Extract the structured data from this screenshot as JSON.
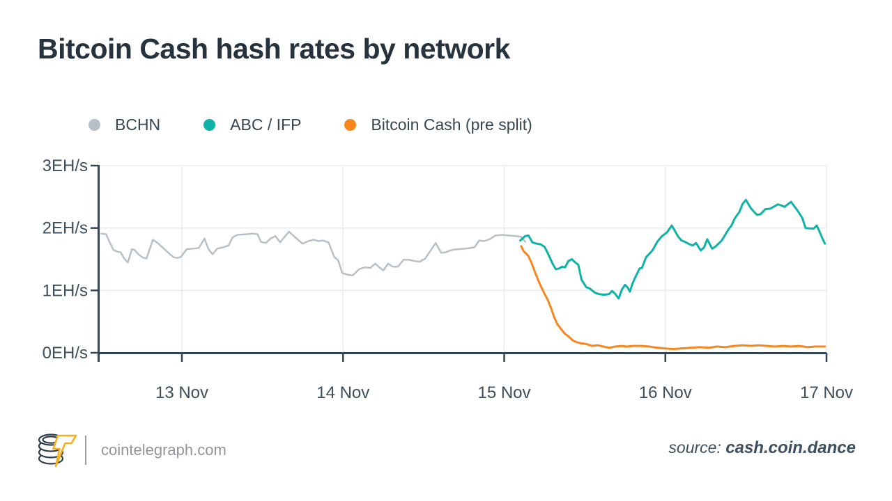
{
  "title": "Bitcoin Cash hash rates by network",
  "legend": [
    {
      "label": "BCHN",
      "color": "#b8c0c7"
    },
    {
      "label": "ABC / IFP",
      "color": "#0fb3a6"
    },
    {
      "label": "Bitcoin Cash (pre split)",
      "color": "#f6871f"
    }
  ],
  "footer": {
    "brand": "cointelegraph.com",
    "source_label": "source:",
    "source_value": "cash.coin.dance",
    "logo_coin_color": "#2e3d48",
    "logo_bolt_color": "#f2b01e"
  },
  "chart_data": {
    "type": "line",
    "title": "Bitcoin Cash hash rates by network",
    "xlabel": "",
    "ylabel": "EH/s",
    "x_unit": "days since 13 Nov",
    "xlim_days": [
      -0.523,
      4.0
    ],
    "ylim": [
      0,
      3
    ],
    "grid": true,
    "legend_position": "top",
    "axis_color": "#344451",
    "grid_color": "#ebebeb",
    "label_color": "#3d4e5a",
    "y_ticks": [
      {
        "v": 0,
        "label": "0EH/s"
      },
      {
        "v": 1,
        "label": "1EH/s"
      },
      {
        "v": 2,
        "label": "2EH/s"
      },
      {
        "v": 3,
        "label": "3EH/s"
      }
    ],
    "x_ticks": [
      {
        "d": 0,
        "label": "13 Nov"
      },
      {
        "d": 1,
        "label": "14 Nov"
      },
      {
        "d": 2,
        "label": "15 Nov"
      },
      {
        "d": 3,
        "label": "16 Nov"
      },
      {
        "d": 4,
        "label": "17 Nov"
      }
    ],
    "series": [
      {
        "name": "BCHN",
        "color": "#b8c0c7",
        "width": 2.5,
        "points": [
          [
            -0.5,
            1.91
          ],
          [
            -0.47,
            1.9
          ],
          [
            -0.455,
            1.81
          ],
          [
            -0.425,
            1.65
          ],
          [
            -0.4,
            1.62
          ],
          [
            -0.38,
            1.61
          ],
          [
            -0.355,
            1.5
          ],
          [
            -0.335,
            1.45
          ],
          [
            -0.31,
            1.66
          ],
          [
            -0.295,
            1.65
          ],
          [
            -0.27,
            1.58
          ],
          [
            -0.245,
            1.53
          ],
          [
            -0.22,
            1.51
          ],
          [
            -0.18,
            1.81
          ],
          [
            -0.155,
            1.77
          ],
          [
            -0.125,
            1.7
          ],
          [
            -0.1,
            1.64
          ],
          [
            -0.07,
            1.57
          ],
          [
            -0.05,
            1.53
          ],
          [
            -0.025,
            1.52
          ],
          [
            -0.005,
            1.54
          ],
          [
            0.03,
            1.66
          ],
          [
            0.075,
            1.67
          ],
          [
            0.105,
            1.68
          ],
          [
            0.14,
            1.83
          ],
          [
            0.165,
            1.66
          ],
          [
            0.19,
            1.58
          ],
          [
            0.22,
            1.67
          ],
          [
            0.255,
            1.69
          ],
          [
            0.29,
            1.72
          ],
          [
            0.315,
            1.85
          ],
          [
            0.345,
            1.89
          ],
          [
            0.4,
            1.9
          ],
          [
            0.44,
            1.91
          ],
          [
            0.47,
            1.9
          ],
          [
            0.49,
            1.78
          ],
          [
            0.52,
            1.76
          ],
          [
            0.55,
            1.83
          ],
          [
            0.58,
            1.87
          ],
          [
            0.61,
            1.77
          ],
          [
            0.635,
            1.85
          ],
          [
            0.665,
            1.94
          ],
          [
            0.695,
            1.87
          ],
          [
            0.725,
            1.8
          ],
          [
            0.75,
            1.75
          ],
          [
            0.785,
            1.79
          ],
          [
            0.815,
            1.81
          ],
          [
            0.85,
            1.79
          ],
          [
            0.875,
            1.8
          ],
          [
            0.91,
            1.77
          ],
          [
            0.945,
            1.54
          ],
          [
            0.97,
            1.48
          ],
          [
            0.995,
            1.28
          ],
          [
            1.03,
            1.25
          ],
          [
            1.06,
            1.24
          ],
          [
            1.1,
            1.34
          ],
          [
            1.135,
            1.37
          ],
          [
            1.17,
            1.36
          ],
          [
            1.2,
            1.43
          ],
          [
            1.225,
            1.37
          ],
          [
            1.25,
            1.32
          ],
          [
            1.28,
            1.43
          ],
          [
            1.31,
            1.38
          ],
          [
            1.34,
            1.38
          ],
          [
            1.375,
            1.49
          ],
          [
            1.41,
            1.49
          ],
          [
            1.445,
            1.47
          ],
          [
            1.475,
            1.46
          ],
          [
            1.51,
            1.51
          ],
          [
            1.575,
            1.76
          ],
          [
            1.61,
            1.6
          ],
          [
            1.635,
            1.61
          ],
          [
            1.68,
            1.65
          ],
          [
            1.715,
            1.66
          ],
          [
            1.76,
            1.67
          ],
          [
            1.79,
            1.68
          ],
          [
            1.815,
            1.69
          ],
          [
            1.845,
            1.8
          ],
          [
            1.875,
            1.79
          ],
          [
            1.91,
            1.82
          ],
          [
            1.945,
            1.88
          ],
          [
            1.99,
            1.89
          ],
          [
            2.025,
            1.88
          ],
          [
            2.07,
            1.87
          ],
          [
            2.105,
            1.86
          ],
          [
            2.13,
            1.78
          ]
        ]
      },
      {
        "name": "ABC / IFP",
        "color": "#0fb3a6",
        "width": 3,
        "points": [
          [
            2.1,
            1.8
          ],
          [
            2.13,
            1.87
          ],
          [
            2.15,
            1.88
          ],
          [
            2.175,
            1.77
          ],
          [
            2.2,
            1.75
          ],
          [
            2.225,
            1.74
          ],
          [
            2.25,
            1.7
          ],
          [
            2.27,
            1.6
          ],
          [
            2.3,
            1.43
          ],
          [
            2.32,
            1.34
          ],
          [
            2.34,
            1.35
          ],
          [
            2.36,
            1.38
          ],
          [
            2.378,
            1.37
          ],
          [
            2.398,
            1.47
          ],
          [
            2.42,
            1.5
          ],
          [
            2.44,
            1.45
          ],
          [
            2.46,
            1.41
          ],
          [
            2.48,
            1.17
          ],
          [
            2.51,
            1.05
          ],
          [
            2.53,
            1.03
          ],
          [
            2.565,
            0.96
          ],
          [
            2.59,
            0.94
          ],
          [
            2.62,
            0.93
          ],
          [
            2.65,
            0.94
          ],
          [
            2.67,
            0.99
          ],
          [
            2.69,
            0.94
          ],
          [
            2.71,
            0.87
          ],
          [
            2.73,
            1.01
          ],
          [
            2.75,
            1.09
          ],
          [
            2.765,
            1.05
          ],
          [
            2.78,
            0.98
          ],
          [
            2.795,
            1.1
          ],
          [
            2.81,
            1.19
          ],
          [
            2.84,
            1.35
          ],
          [
            2.855,
            1.36
          ],
          [
            2.88,
            1.53
          ],
          [
            2.92,
            1.64
          ],
          [
            2.95,
            1.78
          ],
          [
            2.975,
            1.86
          ],
          [
            3.01,
            1.93
          ],
          [
            3.04,
            2.04
          ],
          [
            3.06,
            1.95
          ],
          [
            3.08,
            1.86
          ],
          [
            3.1,
            1.8
          ],
          [
            3.12,
            1.78
          ],
          [
            3.15,
            1.74
          ],
          [
            3.17,
            1.72
          ],
          [
            3.19,
            1.76
          ],
          [
            3.22,
            1.64
          ],
          [
            3.24,
            1.69
          ],
          [
            3.26,
            1.82
          ],
          [
            3.29,
            1.67
          ],
          [
            3.31,
            1.7
          ],
          [
            3.33,
            1.75
          ],
          [
            3.35,
            1.8
          ],
          [
            3.39,
            1.97
          ],
          [
            3.41,
            2.04
          ],
          [
            3.43,
            2.15
          ],
          [
            3.46,
            2.26
          ],
          [
            3.48,
            2.39
          ],
          [
            3.5,
            2.45
          ],
          [
            3.53,
            2.32
          ],
          [
            3.55,
            2.26
          ],
          [
            3.57,
            2.21
          ],
          [
            3.59,
            2.22
          ],
          [
            3.62,
            2.3
          ],
          [
            3.65,
            2.31
          ],
          [
            3.7,
            2.38
          ],
          [
            3.72,
            2.36
          ],
          [
            3.74,
            2.34
          ],
          [
            3.78,
            2.42
          ],
          [
            3.82,
            2.28
          ],
          [
            3.85,
            2.16
          ],
          [
            3.87,
            2.0
          ],
          [
            3.92,
            1.99
          ],
          [
            3.94,
            2.04
          ],
          [
            3.97,
            1.86
          ],
          [
            3.99,
            1.75
          ]
        ]
      },
      {
        "name": "Bitcoin Cash (pre split)",
        "color": "#f6871f",
        "width": 3,
        "points": [
          [
            2.105,
            1.71
          ],
          [
            2.12,
            1.63
          ],
          [
            2.15,
            1.55
          ],
          [
            2.17,
            1.44
          ],
          [
            2.19,
            1.3
          ],
          [
            2.21,
            1.17
          ],
          [
            2.23,
            1.05
          ],
          [
            2.25,
            0.95
          ],
          [
            2.27,
            0.85
          ],
          [
            2.29,
            0.72
          ],
          [
            2.31,
            0.57
          ],
          [
            2.33,
            0.46
          ],
          [
            2.35,
            0.39
          ],
          [
            2.375,
            0.31
          ],
          [
            2.4,
            0.26
          ],
          [
            2.425,
            0.2
          ],
          [
            2.45,
            0.17
          ],
          [
            2.48,
            0.15
          ],
          [
            2.51,
            0.14
          ],
          [
            2.545,
            0.11
          ],
          [
            2.58,
            0.12
          ],
          [
            2.615,
            0.1
          ],
          [
            2.65,
            0.08
          ],
          [
            2.69,
            0.1
          ],
          [
            2.725,
            0.11
          ],
          [
            2.76,
            0.1
          ],
          [
            2.8,
            0.11
          ],
          [
            2.85,
            0.11
          ],
          [
            2.9,
            0.1
          ],
          [
            2.95,
            0.08
          ],
          [
            3.0,
            0.07
          ],
          [
            3.05,
            0.06
          ],
          [
            3.1,
            0.07
          ],
          [
            3.16,
            0.08
          ],
          [
            3.21,
            0.09
          ],
          [
            3.27,
            0.08
          ],
          [
            3.32,
            0.1
          ],
          [
            3.37,
            0.09
          ],
          [
            3.43,
            0.11
          ],
          [
            3.48,
            0.12
          ],
          [
            3.53,
            0.11
          ],
          [
            3.58,
            0.12
          ],
          [
            3.63,
            0.11
          ],
          [
            3.68,
            0.1
          ],
          [
            3.73,
            0.11
          ],
          [
            3.78,
            0.1
          ],
          [
            3.83,
            0.11
          ],
          [
            3.88,
            0.09
          ],
          [
            3.93,
            0.1
          ],
          [
            3.99,
            0.1
          ]
        ]
      }
    ]
  }
}
